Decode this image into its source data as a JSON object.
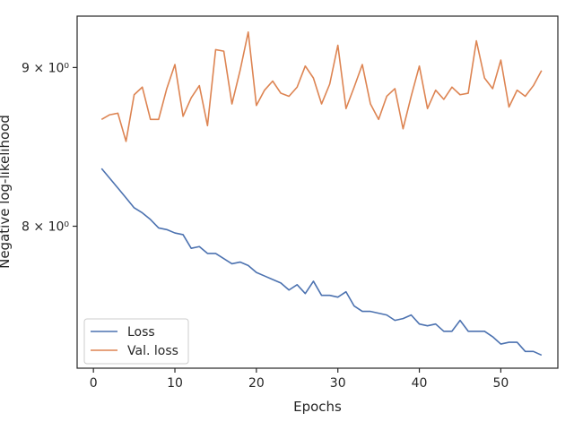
{
  "chart_data": {
    "type": "line",
    "xlabel": "Epochs",
    "ylabel": "Negative log-likelihood",
    "yscale": "log",
    "xlim": [
      -2,
      57
    ],
    "ylim": [
      7.2,
      9.35
    ],
    "xticks": [
      0,
      10,
      20,
      30,
      40,
      50
    ],
    "yticks": [
      {
        "value": 8,
        "label": "8 × 10⁰"
      },
      {
        "value": 9,
        "label": "9 × 10⁰"
      }
    ],
    "grid": false,
    "legend_position": "lower-left",
    "x": [
      1,
      2,
      3,
      4,
      5,
      6,
      7,
      8,
      9,
      10,
      11,
      12,
      13,
      14,
      15,
      16,
      17,
      18,
      19,
      20,
      21,
      22,
      23,
      24,
      25,
      26,
      27,
      28,
      29,
      30,
      31,
      32,
      33,
      34,
      35,
      36,
      37,
      38,
      39,
      40,
      41,
      42,
      43,
      44,
      45,
      46,
      47,
      48,
      49,
      50,
      51,
      52,
      53,
      54,
      55
    ],
    "series": [
      {
        "name": "Loss",
        "color": "#4c72b0",
        "values": [
          8.35,
          8.29,
          8.23,
          8.17,
          8.11,
          8.08,
          8.04,
          7.99,
          7.98,
          7.96,
          7.95,
          7.87,
          7.88,
          7.84,
          7.84,
          7.81,
          7.78,
          7.79,
          7.77,
          7.73,
          7.71,
          7.69,
          7.67,
          7.63,
          7.66,
          7.61,
          7.68,
          7.6,
          7.6,
          7.59,
          7.62,
          7.54,
          7.51,
          7.51,
          7.5,
          7.49,
          7.46,
          7.47,
          7.49,
          7.44,
          7.43,
          7.44,
          7.4,
          7.4,
          7.46,
          7.4,
          7.4,
          7.4,
          7.37,
          7.33,
          7.34,
          7.34,
          7.29,
          7.29,
          7.27
        ]
      },
      {
        "name": "Val. loss",
        "color": "#dd8452",
        "values": [
          8.66,
          8.69,
          8.7,
          8.52,
          8.82,
          8.87,
          8.66,
          8.66,
          8.86,
          9.02,
          8.68,
          8.8,
          8.88,
          8.62,
          9.12,
          9.11,
          8.76,
          8.98,
          9.24,
          8.75,
          8.85,
          8.91,
          8.83,
          8.81,
          8.87,
          9.01,
          8.93,
          8.76,
          8.89,
          9.15,
          8.73,
          8.87,
          9.02,
          8.76,
          8.66,
          8.81,
          8.86,
          8.6,
          8.81,
          9.01,
          8.73,
          8.85,
          8.79,
          8.87,
          8.82,
          8.83,
          9.18,
          8.93,
          8.86,
          9.05,
          8.74,
          8.85,
          8.81,
          8.88,
          8.98
        ]
      }
    ]
  }
}
